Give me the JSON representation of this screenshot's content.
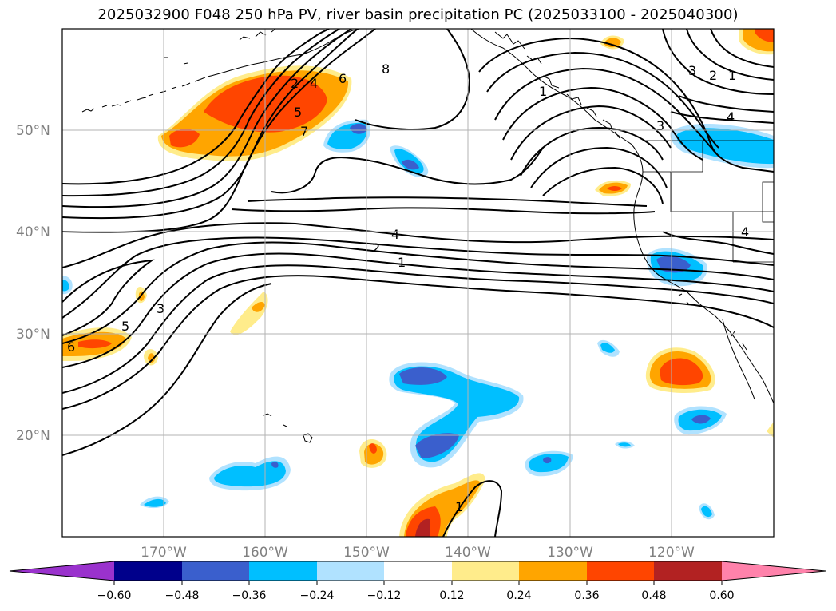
{
  "title": "2025032900 F048 250 hPa PV, river basin precipitation PC (2025033100 - 2025040300)",
  "map": {
    "lat_labels": [
      "50°N",
      "40°N",
      "30°N",
      "20°N"
    ],
    "lon_labels": [
      "170°W",
      "160°W",
      "150°W",
      "140°W",
      "130°W",
      "120°W"
    ],
    "contour_labels": [
      "8",
      "2",
      "4",
      "5",
      "6",
      "7",
      "1",
      "3",
      "2",
      "1",
      "3",
      "4",
      "4",
      "2",
      "1",
      "3",
      "5",
      "6",
      "1",
      "4"
    ]
  },
  "colorbar": {
    "ticks": [
      "−0.60",
      "−0.48",
      "−0.36",
      "−0.24",
      "−0.12",
      "0.12",
      "0.24",
      "0.36",
      "0.48",
      "0.60"
    ],
    "colors": [
      "#9a32cd",
      "#00008b",
      "#3a5fcd",
      "#00bfff",
      "#b0e2ff",
      "#ffffff",
      "#ffec8b",
      "#ffa500",
      "#ff4500",
      "#b22222",
      "#ff82ab"
    ]
  }
}
